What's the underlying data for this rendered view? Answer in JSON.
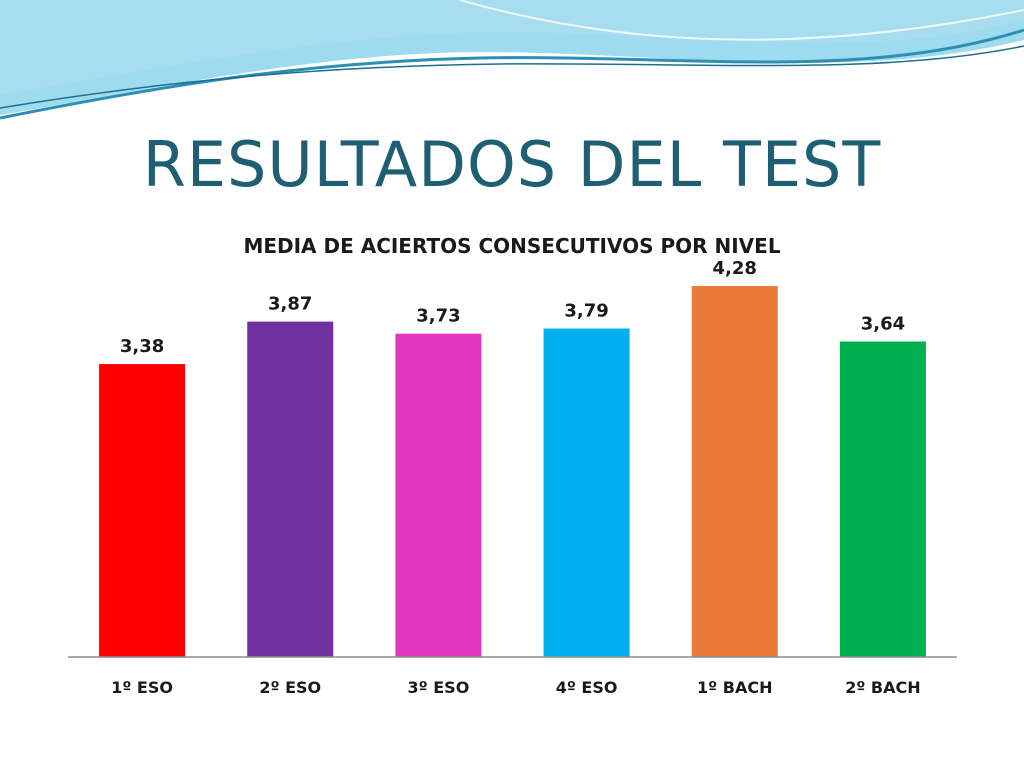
{
  "slide": {
    "title": "RESULTADOS DEL TEST"
  },
  "chart_data": {
    "type": "bar",
    "title": "MEDIA DE ACIERTOS CONSECUTIVOS POR NIVEL",
    "categories": [
      "1º ESO",
      "2º ESO",
      "3º ESO",
      "4º ESO",
      "1º BACH",
      "2º BACH"
    ],
    "values": [
      3.38,
      3.87,
      3.73,
      3.79,
      4.28,
      3.64
    ],
    "data_labels": [
      "3,38",
      "3,87",
      "3,73",
      "3,79",
      "4,28",
      "3,64"
    ],
    "colors": [
      "#ff0000",
      "#7030a0",
      "#e036c0",
      "#00b0f0",
      "#e97a38",
      "#00b050"
    ],
    "xlabel": "",
    "ylabel": "",
    "ylim": [
      0,
      4.5
    ],
    "grid": false,
    "legend": "none"
  },
  "theme": {
    "title_color": "#1f5f73",
    "wave_colors": [
      "#7ecfe8",
      "#3aa6c8",
      "#b9e6f2"
    ]
  }
}
